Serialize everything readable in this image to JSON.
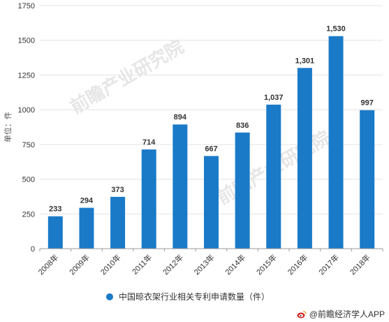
{
  "colors": {
    "bar": "#1a7ac8",
    "grid": "#e3e3e3",
    "axis": "#999999"
  },
  "unit_label": "单位：件",
  "watermark_text": "前瞻产业研究院",
  "legend": {
    "label": "中国晾衣架行业相关专利申请数量（件）",
    "icon": "circle-marker"
  },
  "source": {
    "label": "@前瞻经济学人APP",
    "icon": "weibo-logo-icon"
  },
  "chart_data": {
    "type": "bar",
    "categories": [
      "2008年",
      "2009年",
      "2010年",
      "2011年",
      "2012年",
      "2013年",
      "2014年",
      "2015年",
      "2016年",
      "2017年",
      "2018年"
    ],
    "series": [
      {
        "name": "中国晾衣架行业相关专利申请数量（件）",
        "values": [
          233,
          294,
          373,
          714,
          894,
          667,
          836,
          1037,
          1301,
          1530,
          997
        ]
      }
    ],
    "value_labels": [
      "233",
      "294",
      "373",
      "714",
      "894",
      "667",
      "836",
      "1,037",
      "1,301",
      "1,530",
      "997"
    ],
    "y_ticks": [
      "0",
      "250",
      "500",
      "750",
      "1000",
      "1250",
      "1500",
      "1750"
    ],
    "ylim": [
      0,
      1750
    ],
    "grid": true,
    "legend_position": "bottom"
  }
}
